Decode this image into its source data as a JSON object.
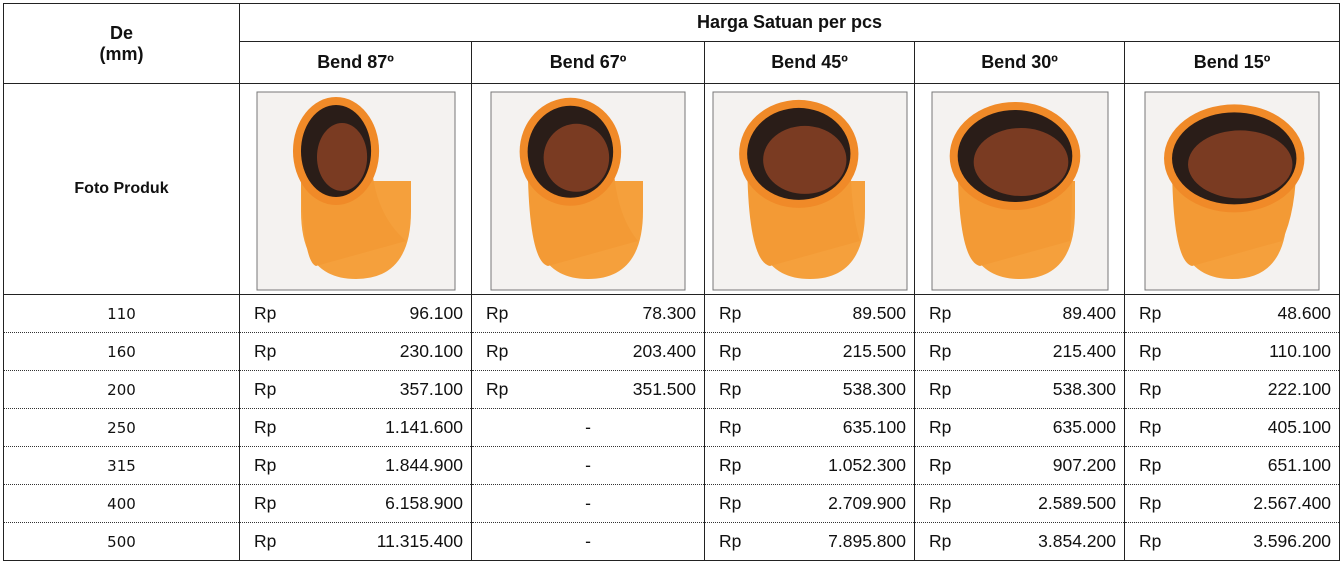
{
  "table": {
    "de_header": [
      "De",
      "(mm)"
    ],
    "group_title": "Harga Satuan per pcs",
    "columns": [
      "Bend 87º",
      "Bend 67º",
      "Bend 45º",
      "Bend 30º",
      "Bend 15º"
    ],
    "photo_label": "Foto Produk",
    "currency": "Rp",
    "rows": [
      {
        "de": "110",
        "prices": [
          "96.100",
          "78.300",
          "89.500",
          "89.400",
          "48.600"
        ]
      },
      {
        "de": "160",
        "prices": [
          "230.100",
          "203.400",
          "215.500",
          "215.400",
          "110.100"
        ]
      },
      {
        "de": "200",
        "prices": [
          "357.100",
          "351.500",
          "538.300",
          "538.300",
          "222.100"
        ]
      },
      {
        "de": "250",
        "prices": [
          "1.141.600",
          "-",
          "635.100",
          "635.000",
          "405.100"
        ]
      },
      {
        "de": "315",
        "prices": [
          "1.844.900",
          "-",
          "1.052.300",
          "907.200",
          "651.100"
        ]
      },
      {
        "de": "400",
        "prices": [
          "6.158.900",
          "-",
          "2.709.900",
          "2.589.500",
          "2.567.400"
        ]
      },
      {
        "de": "500",
        "prices": [
          "11.315.400",
          "-",
          "7.895.800",
          "3.854.200",
          "3.596.200"
        ]
      }
    ]
  }
}
